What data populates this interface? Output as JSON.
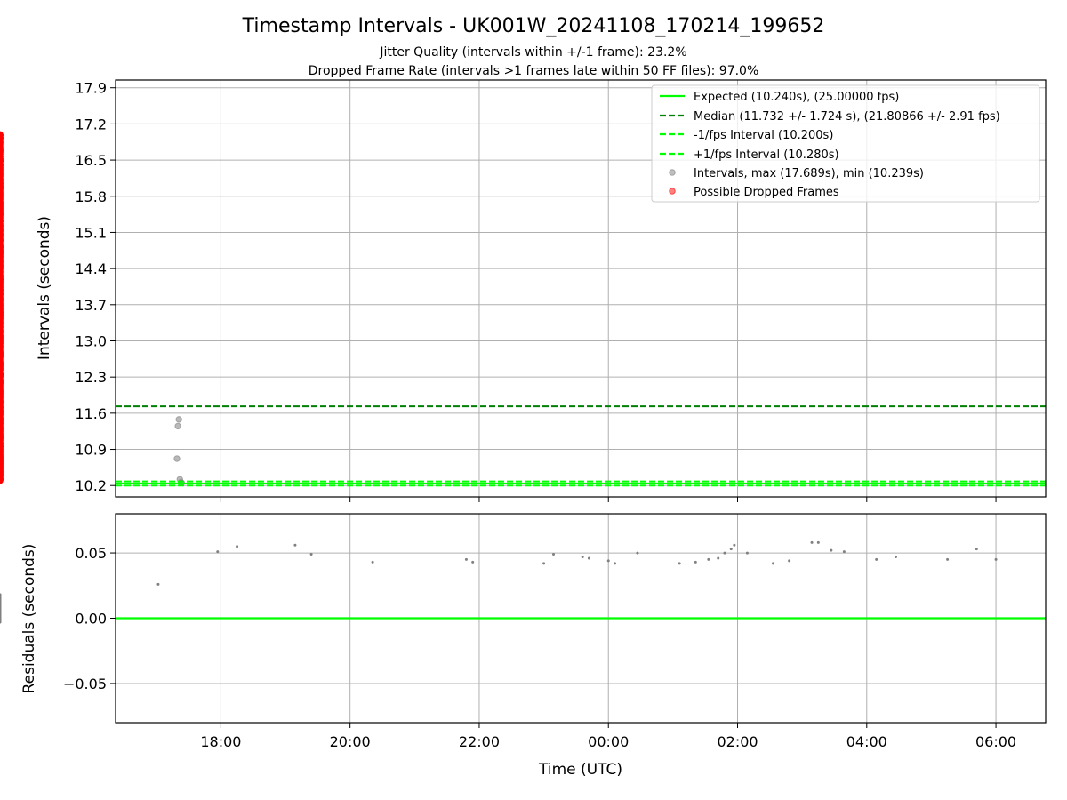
{
  "chart_data": {
    "type": "scatter",
    "title": "Timestamp Intervals - UK001W_20241108_170214_199652",
    "subtitle": [
      "Jitter Quality (intervals within +/-1 frame): 23.2%",
      "Dropped Frame Rate (intervals >1 frames late within 50 FF files): 97.0%"
    ],
    "xlabel": "Time (UTC)",
    "x_ticks": [
      "18:00",
      "20:00",
      "22:00",
      "00:00",
      "02:00",
      "04:00",
      "06:00"
    ],
    "x_tick_hours": [
      18,
      20,
      22,
      24,
      26,
      28,
      30
    ],
    "xlim_hours": [
      16.37,
      30.77
    ],
    "top_panel": {
      "ylabel": "Intervals (seconds)",
      "ylim": [
        9.98,
        18.05
      ],
      "y_ticks": [
        "10.2",
        "10.9",
        "11.6",
        "12.3",
        "13.0",
        "13.7",
        "14.4",
        "15.1",
        "15.8",
        "16.5",
        "17.2",
        "17.9"
      ],
      "y_tick_values": [
        10.2,
        10.9,
        11.6,
        12.3,
        13.0,
        13.7,
        14.4,
        15.1,
        15.8,
        16.5,
        17.2,
        17.9
      ],
      "grid": true,
      "legend_position": "top-right",
      "expected_interval": 10.24,
      "median_interval": 11.732,
      "lower_interval": 10.2,
      "upper_interval": 10.28,
      "max_interval": 17.689,
      "min_interval": 10.239,
      "scatter_start_hour": 17.03,
      "dropped_start_hour": 17.43,
      "legend": [
        {
          "label": "Expected (10.240s), (25.00000 fps)",
          "kind": "line",
          "color": "#00ff00",
          "dash": false
        },
        {
          "label": "Median (11.732 +/- 1.724 s), (21.80866 +/- 2.91 fps)",
          "kind": "line",
          "color": "#008000",
          "dash": true
        },
        {
          "label": "-1/fps Interval (10.200s)",
          "kind": "line",
          "color": "#00ff00",
          "dash": true
        },
        {
          "label": "+1/fps Interval (10.280s)",
          "kind": "line",
          "color": "#00ff00",
          "dash": true
        },
        {
          "label": "Intervals, max (17.689s), min (10.239s)",
          "kind": "marker",
          "color": "#808080"
        },
        {
          "label": "Possible Dropped Frames",
          "kind": "marker",
          "color": "#ff0000"
        }
      ]
    },
    "bottom_panel": {
      "ylabel": "Residuals (seconds)",
      "ylim": [
        -0.08,
        0.08
      ],
      "y_ticks": [
        "−0.05",
        "0.00",
        "0.05"
      ],
      "y_tick_values": [
        -0.05,
        0.0,
        0.05
      ],
      "grid": true,
      "zero_line_color": "#00ff00"
    },
    "colors": {
      "expected": "#00ff00",
      "median": "#008000",
      "dropped": "#ff0000",
      "intervals": "#808080"
    }
  }
}
